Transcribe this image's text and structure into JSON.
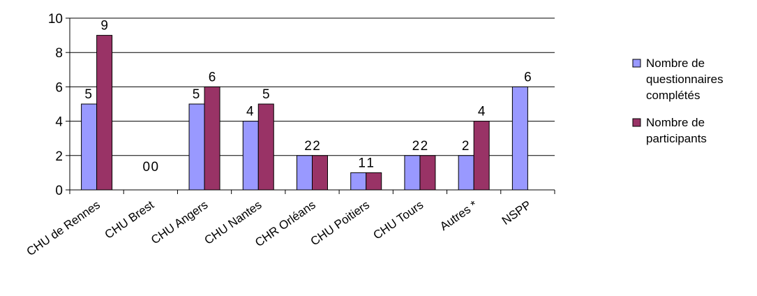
{
  "chart_data": {
    "type": "bar",
    "categories": [
      "CHU de Rennes",
      "CHU Brest",
      "CHU Angers",
      "CHU Nantes",
      "CHR Orléans",
      "CHU Poitiers",
      "CHU Tours",
      "Autres *",
      "NSPP"
    ],
    "series": [
      {
        "name": "Nombre de questionnaires complétés",
        "name_lines": [
          "Nombre de",
          "questionnaires",
          "complétés"
        ],
        "color": "#9999ff",
        "values": [
          5,
          0,
          5,
          4,
          2,
          1,
          2,
          2,
          6
        ],
        "labels": [
          "5",
          "0",
          "5",
          "4",
          "2",
          "1",
          "2",
          "2",
          "6"
        ]
      },
      {
        "name": "Nombre de participants",
        "name_lines": [
          "Nombre de",
          "participants"
        ],
        "color": "#993366",
        "values": [
          9,
          0,
          6,
          5,
          2,
          1,
          2,
          4,
          0
        ],
        "labels": [
          "9",
          "0",
          "6",
          "5",
          "2",
          "1",
          "2",
          "4",
          ""
        ]
      }
    ],
    "yticks": [
      0,
      2,
      4,
      6,
      8,
      10
    ],
    "ylim": [
      0,
      10
    ],
    "grid": true,
    "legend": "right",
    "title": "",
    "xlabel": "",
    "ylabel": ""
  }
}
